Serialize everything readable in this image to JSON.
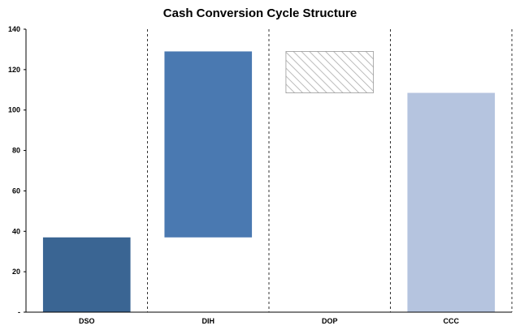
{
  "chart_data": {
    "type": "bar",
    "title": "Cash Conversion Cycle Structure",
    "categories": [
      "DSO",
      "DIH",
      "DOP",
      "CCC"
    ],
    "bars": [
      {
        "category": "DSO",
        "base": 0,
        "top": 37,
        "color": "#3a6593",
        "pattern": "solid"
      },
      {
        "category": "DIH",
        "base": 37,
        "top": 129,
        "color": "#4a79b1",
        "pattern": "solid"
      },
      {
        "category": "DOP",
        "base": 108.5,
        "top": 129,
        "color": "#aaaaaa",
        "pattern": "hatched"
      },
      {
        "category": "CCC",
        "base": 0,
        "top": 108.5,
        "color": "#b5c4df",
        "pattern": "solid"
      }
    ],
    "ylim": [
      0,
      140
    ],
    "yticks": [
      "-",
      "20",
      "40",
      "60",
      "80",
      "100",
      "120",
      "140"
    ],
    "xlabel": "",
    "ylabel": "",
    "grid": "dashed vertical separators between categories"
  }
}
